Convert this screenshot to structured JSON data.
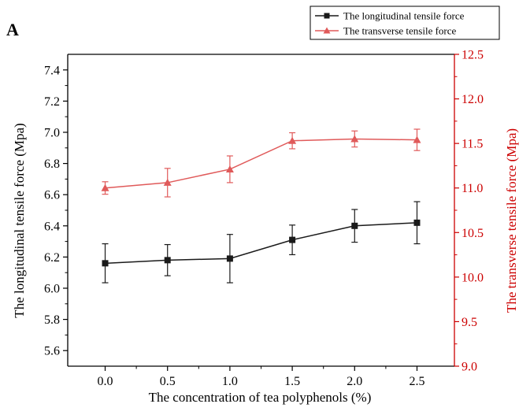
{
  "chart_data": {
    "type": "line",
    "panel_label": "A",
    "xlabel": "The concentration of tea polyphenols (%)",
    "ylabel_left": "The longitudinal tensile force (Mpa)",
    "ylabel_right": "The transverse tensile force (Mpa)",
    "x": [
      0.0,
      0.5,
      1.0,
      1.5,
      2.0,
      2.5
    ],
    "x_ticks": [
      "0.0",
      "0.5",
      "1.0",
      "1.5",
      "2.0",
      "2.5"
    ],
    "xlim": [
      -0.3,
      2.8
    ],
    "ylim_left": [
      5.5,
      7.5
    ],
    "ylim_right": [
      9.0,
      12.5
    ],
    "yticks_left": [
      "5.6",
      "5.8",
      "6.0",
      "6.2",
      "6.4",
      "6.6",
      "6.8",
      "7.0",
      "7.2",
      "7.4"
    ],
    "yticks_right": [
      "9.0",
      "9.5",
      "10.0",
      "10.5",
      "11.0",
      "11.5",
      "12.0",
      "12.5"
    ],
    "legend_position": "top-right",
    "colors": {
      "left_series": "#1a1a1a",
      "right_series": "#e05a5a",
      "right_axis": "#cc0000"
    },
    "series": [
      {
        "name": "The longitudinal tensile force",
        "axis": "left",
        "marker": "square",
        "values": [
          6.16,
          6.18,
          6.19,
          6.31,
          6.4,
          6.42
        ],
        "errors": [
          0.125,
          0.1,
          0.155,
          0.095,
          0.105,
          0.135
        ]
      },
      {
        "name": "The transverse tensile force",
        "axis": "right",
        "marker": "triangle",
        "values": [
          11.0,
          11.06,
          11.21,
          11.53,
          11.55,
          11.54
        ],
        "errors": [
          0.07,
          0.16,
          0.15,
          0.09,
          0.09,
          0.12
        ]
      }
    ]
  }
}
